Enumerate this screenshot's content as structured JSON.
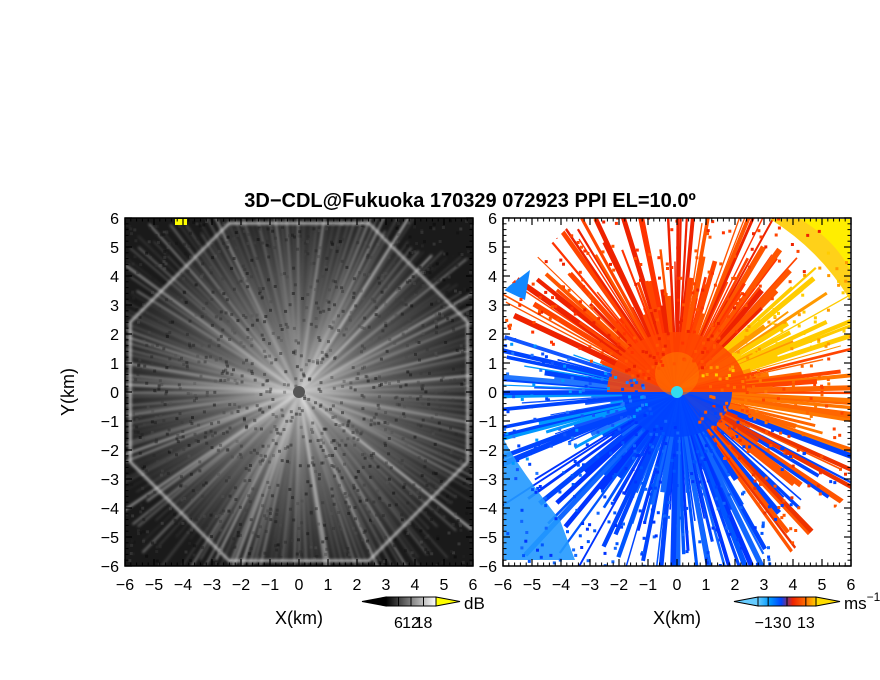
{
  "title": "3D−CDL@Fukuoka 170329 072923 PPI EL=10.0º",
  "chart_data": [
    {
      "type": "heatmap",
      "name": "reflectivity-panel",
      "x_label": "X(km)",
      "y_label": "Y(km)",
      "x_range": [
        -6,
        6
      ],
      "y_range": [
        -6,
        6
      ],
      "x_ticks": [
        "−6",
        "−5",
        "−4",
        "−3",
        "−2",
        "−1",
        "0",
        "1",
        "2",
        "3",
        "4",
        "5",
        "6"
      ],
      "y_ticks": [
        "−6",
        "−5",
        "−4",
        "−3",
        "−2",
        "−1",
        "0",
        "1",
        "2",
        "3",
        "4",
        "5",
        "6"
      ],
      "colorbar": {
        "unit": "dB",
        "tick_labels": [
          "6",
          "12",
          "18"
        ],
        "tick_values": [
          6,
          12,
          18
        ],
        "range": [
          0,
          24
        ],
        "colors": [
          "#000000",
          "#404040",
          "#808080",
          "#c0c0c0",
          "#ffffff"
        ],
        "over_color": "#ffff00"
      },
      "max_range_km": 6,
      "center_marker_color": "#555555"
    },
    {
      "type": "heatmap",
      "name": "doppler-velocity-panel",
      "x_label": "X(km)",
      "y_label": "",
      "x_range": [
        -6,
        6
      ],
      "y_range": [
        -6,
        6
      ],
      "x_ticks": [
        "−6",
        "−5",
        "−4",
        "−3",
        "−2",
        "−1",
        "0",
        "1",
        "2",
        "3",
        "4",
        "5",
        "6"
      ],
      "y_ticks": [
        "−6",
        "−5",
        "−4",
        "−3",
        "−2",
        "−1",
        "0",
        "1",
        "2",
        "3",
        "4",
        "5",
        "6"
      ],
      "colorbar": {
        "unit": "ms",
        "unit_superscript": "−1",
        "tick_labels": [
          "−13",
          "0",
          "13"
        ],
        "tick_values": [
          -13,
          0,
          13
        ],
        "range": [
          -20,
          20
        ],
        "colors": [
          "#66ccff",
          "#0099ff",
          "#0044ff",
          "#ee2200",
          "#ff6600",
          "#ffcc00"
        ],
        "under_color": "#66ccff",
        "over_color": "#ffdd00"
      },
      "max_range_km": 6,
      "center_marker_color": "#33ddee"
    }
  ]
}
